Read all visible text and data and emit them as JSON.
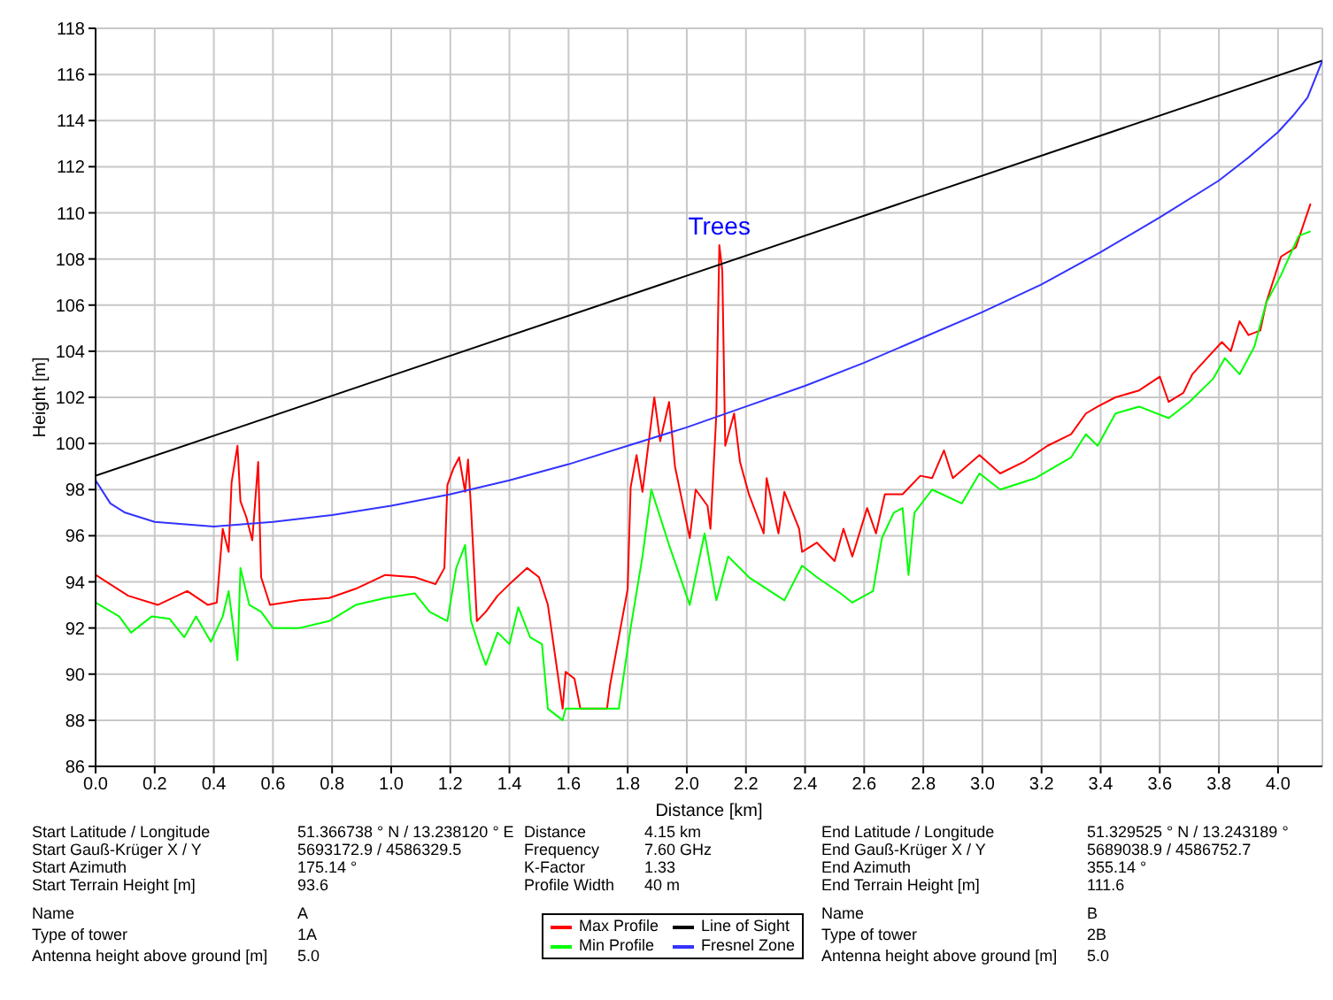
{
  "chart_data": {
    "type": "line",
    "xlabel": "Distance [km]",
    "ylabel": "Height [m]",
    "xlim": [
      0,
      4.15
    ],
    "ylim": [
      86,
      118
    ],
    "xticks": [
      {
        "value": 0,
        "label": "0.0"
      },
      0.2,
      0.4,
      0.6,
      0.8,
      {
        "value": 1,
        "label": "1.0"
      },
      1.2,
      1.4,
      1.6,
      1.8,
      {
        "value": 2,
        "label": "2.0"
      },
      2.2,
      2.4,
      2.6,
      2.8,
      {
        "value": 3,
        "label": "3.0"
      },
      3.2,
      3.4,
      3.6,
      3.8,
      {
        "value": 4,
        "label": "4.0"
      }
    ],
    "yticks": [
      86,
      88,
      90,
      92,
      94,
      96,
      98,
      100,
      102,
      104,
      106,
      108,
      110,
      112,
      114,
      116,
      118
    ],
    "grid": true,
    "legend": "bottom",
    "marker": "none",
    "line_style": "solid",
    "series": [
      {
        "name": "Max Profile",
        "color": "#ff0000",
        "x": [
          0,
          0.11,
          0.21,
          0.31,
          0.38,
          0.41,
          0.43,
          0.45,
          0.46,
          0.48,
          0.49,
          0.51,
          0.53,
          0.55,
          0.56,
          0.59,
          0.69,
          0.79,
          0.88,
          0.98,
          1.08,
          1.15,
          1.18,
          1.19,
          1.21,
          1.23,
          1.25,
          1.26,
          1.27,
          1.29,
          1.32,
          1.36,
          1.4,
          1.46,
          1.5,
          1.53,
          1.57,
          1.58,
          1.59,
          1.62,
          1.64,
          1.73,
          1.74,
          1.8,
          1.81,
          1.83,
          1.85,
          1.89,
          1.91,
          1.94,
          1.96,
          2.01,
          2.03,
          2.07,
          2.08,
          2.1,
          2.11,
          2.12,
          2.13,
          2.16,
          2.18,
          2.21,
          2.26,
          2.27,
          2.31,
          2.33,
          2.38,
          2.39,
          2.44,
          2.5,
          2.53,
          2.56,
          2.61,
          2.64,
          2.67,
          2.73,
          2.79,
          2.83,
          2.87,
          2.9,
          2.99,
          3.06,
          3.14,
          3.22,
          3.3,
          3.35,
          3.39,
          3.45,
          3.53,
          3.6,
          3.63,
          3.68,
          3.71,
          3.76,
          3.81,
          3.84,
          3.87,
          3.9,
          3.94,
          3.96,
          4.01,
          4.06,
          4.11
        ],
        "values": [
          94.3,
          93.4,
          93.0,
          93.6,
          93.0,
          93.1,
          96.3,
          95.3,
          98.3,
          99.9,
          97.5,
          96.8,
          95.8,
          99.2,
          94.2,
          93.0,
          93.2,
          93.3,
          93.7,
          94.3,
          94.2,
          93.9,
          94.6,
          98.2,
          98.9,
          99.4,
          97.9,
          99.3,
          97.2,
          92.3,
          92.7,
          93.4,
          93.9,
          94.6,
          94.2,
          93.0,
          89.4,
          88.5,
          90.1,
          89.8,
          88.5,
          88.5,
          89.5,
          93.7,
          98.1,
          99.5,
          97.9,
          102.0,
          100.1,
          101.8,
          99.0,
          95.9,
          98.0,
          97.3,
          96.3,
          101.3,
          108.6,
          107.5,
          99.9,
          101.3,
          99.2,
          97.8,
          96.1,
          98.5,
          96.1,
          97.9,
          96.3,
          95.3,
          95.7,
          94.9,
          96.3,
          95.1,
          97.2,
          96.1,
          97.8,
          97.8,
          98.6,
          98.5,
          99.7,
          98.5,
          99.5,
          98.7,
          99.2,
          99.9,
          100.4,
          101.3,
          101.6,
          102.0,
          102.3,
          102.9,
          101.8,
          102.2,
          103.0,
          103.7,
          104.4,
          104.0,
          105.3,
          104.7,
          104.9,
          106.1,
          108.1,
          108.5,
          110.4
        ]
      },
      {
        "name": "Min Profile",
        "color": "#00ff00",
        "x": [
          0,
          0.08,
          0.12,
          0.19,
          0.25,
          0.3,
          0.34,
          0.39,
          0.43,
          0.45,
          0.48,
          0.49,
          0.52,
          0.56,
          0.6,
          0.69,
          0.79,
          0.88,
          0.98,
          1.08,
          1.13,
          1.19,
          1.22,
          1.25,
          1.27,
          1.3,
          1.32,
          1.36,
          1.4,
          1.43,
          1.47,
          1.51,
          1.53,
          1.58,
          1.59,
          1.77,
          1.81,
          1.85,
          1.88,
          1.91,
          1.94,
          2.01,
          2.06,
          2.1,
          2.14,
          2.21,
          2.27,
          2.33,
          2.39,
          2.44,
          2.52,
          2.56,
          2.63,
          2.66,
          2.7,
          2.73,
          2.75,
          2.77,
          2.83,
          2.93,
          2.99,
          3.06,
          3.18,
          3.3,
          3.35,
          3.39,
          3.45,
          3.53,
          3.63,
          3.7,
          3.78,
          3.82,
          3.87,
          3.92,
          3.96,
          4.01,
          4.07,
          4.11
        ],
        "values": [
          93.1,
          92.5,
          91.8,
          92.5,
          92.4,
          91.6,
          92.5,
          91.4,
          92.5,
          93.6,
          90.6,
          94.6,
          93.0,
          92.7,
          92.0,
          92.0,
          92.3,
          93.0,
          93.3,
          93.5,
          92.7,
          92.3,
          94.6,
          95.6,
          92.3,
          91.1,
          90.4,
          91.8,
          91.3,
          92.9,
          91.6,
          91.3,
          88.5,
          88.0,
          88.5,
          88.5,
          92.0,
          95.1,
          98.0,
          96.8,
          95.6,
          93.0,
          96.1,
          93.2,
          95.1,
          94.2,
          93.7,
          93.2,
          94.7,
          94.2,
          93.5,
          93.1,
          93.6,
          95.9,
          97.0,
          97.2,
          94.3,
          97.0,
          98.0,
          97.4,
          98.7,
          98.0,
          98.5,
          99.4,
          100.4,
          99.9,
          101.3,
          101.6,
          101.1,
          101.8,
          102.8,
          103.7,
          103.0,
          104.2,
          106.1,
          107.3,
          109.0,
          109.2
        ]
      },
      {
        "name": "Line of Sight",
        "color": "#000000",
        "x": [
          0,
          4.15
        ],
        "values": [
          98.6,
          116.6
        ]
      },
      {
        "name": "Fresnel Zone",
        "color": "#3333ff",
        "x": [
          0,
          0.05,
          0.1,
          0.2,
          0.4,
          0.6,
          0.8,
          1,
          1.2,
          1.4,
          1.6,
          1.8,
          2,
          2.2,
          2.4,
          2.6,
          2.8,
          3,
          3.2,
          3.4,
          3.6,
          3.8,
          3.9,
          4,
          4.05,
          4.1,
          4.15
        ],
        "values": [
          98.4,
          97.4,
          97.0,
          96.6,
          96.4,
          96.6,
          96.9,
          97.3,
          97.8,
          98.4,
          99.1,
          99.9,
          100.7,
          101.6,
          102.5,
          103.5,
          104.6,
          105.7,
          106.9,
          108.3,
          109.8,
          111.4,
          112.4,
          113.5,
          114.2,
          115.0,
          116.6
        ]
      }
    ],
    "annotations": [
      {
        "text": "Trees",
        "x": 2.11,
        "y": 108.6
      },
      "Start Latitude / Longitude",
      "51.366738 ° N / 13.238120 ° E",
      "Distance",
      "4.15 km",
      "End Latitude / Longitude",
      "51.329525 ° N / 13.243189 °",
      "Start Gauß-Krüger X / Y",
      "5693172.9 / 4586329.5",
      "Frequency",
      "7.60 GHz",
      "End Gauß-Krüger X / Y",
      "5689038.9 / 4586752.7",
      "Start Azimuth",
      "175.14 °",
      "K-Factor",
      "1.33",
      "End Azimuth",
      "355.14 °",
      "Start Terrain Height [m]",
      "93.6",
      "Profile Width",
      "40 m",
      "End Terrain Height [m]",
      "111.6",
      "Name",
      "A",
      "Name",
      "B",
      "Type of tower",
      "1A",
      "Type of tower",
      "2B",
      "Antenna height above ground [m]",
      "5.0",
      "Antenna height above ground [m]",
      "5.0"
    ]
  }
}
